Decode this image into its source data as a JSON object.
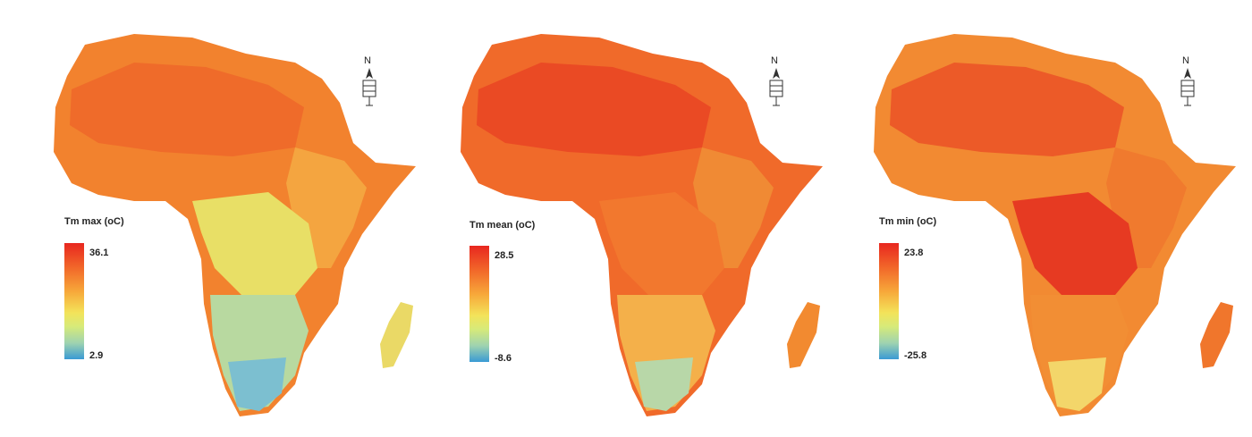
{
  "panels": [
    {
      "id": "max",
      "legend_title": "Tm max (oC)",
      "legend_max": "36.1",
      "legend_min": "2.9",
      "north_label": "N",
      "fills": {
        "north": "#f2822e",
        "sahara": "#ef6b2a",
        "east": "#f4a540",
        "central": "#e8df66",
        "south": "#b8d9a0",
        "southtip": "#7cbfd0",
        "madagascar": "#ead966"
      }
    },
    {
      "id": "mean",
      "legend_title": "Tm mean (oC)",
      "legend_max": "28.5",
      "legend_min": "-8.6",
      "north_label": "N",
      "fills": {
        "north": "#f06a2a",
        "sahara": "#ea4a24",
        "east": "#f08a34",
        "central": "#f2782e",
        "south": "#f4b04a",
        "southtip": "#b8d7a8",
        "madagascar": "#f28a30"
      }
    },
    {
      "id": "min",
      "legend_title": "Tm min (oC)",
      "legend_max": "23.8",
      "legend_min": "-25.8",
      "north_label": "N",
      "fills": {
        "north": "#f28a32",
        "sahara": "#ec5a28",
        "east": "#f07a2e",
        "central": "#e63a22",
        "south": "#f28e34",
        "southtip": "#f3d66a",
        "madagascar": "#f0762c"
      }
    }
  ]
}
